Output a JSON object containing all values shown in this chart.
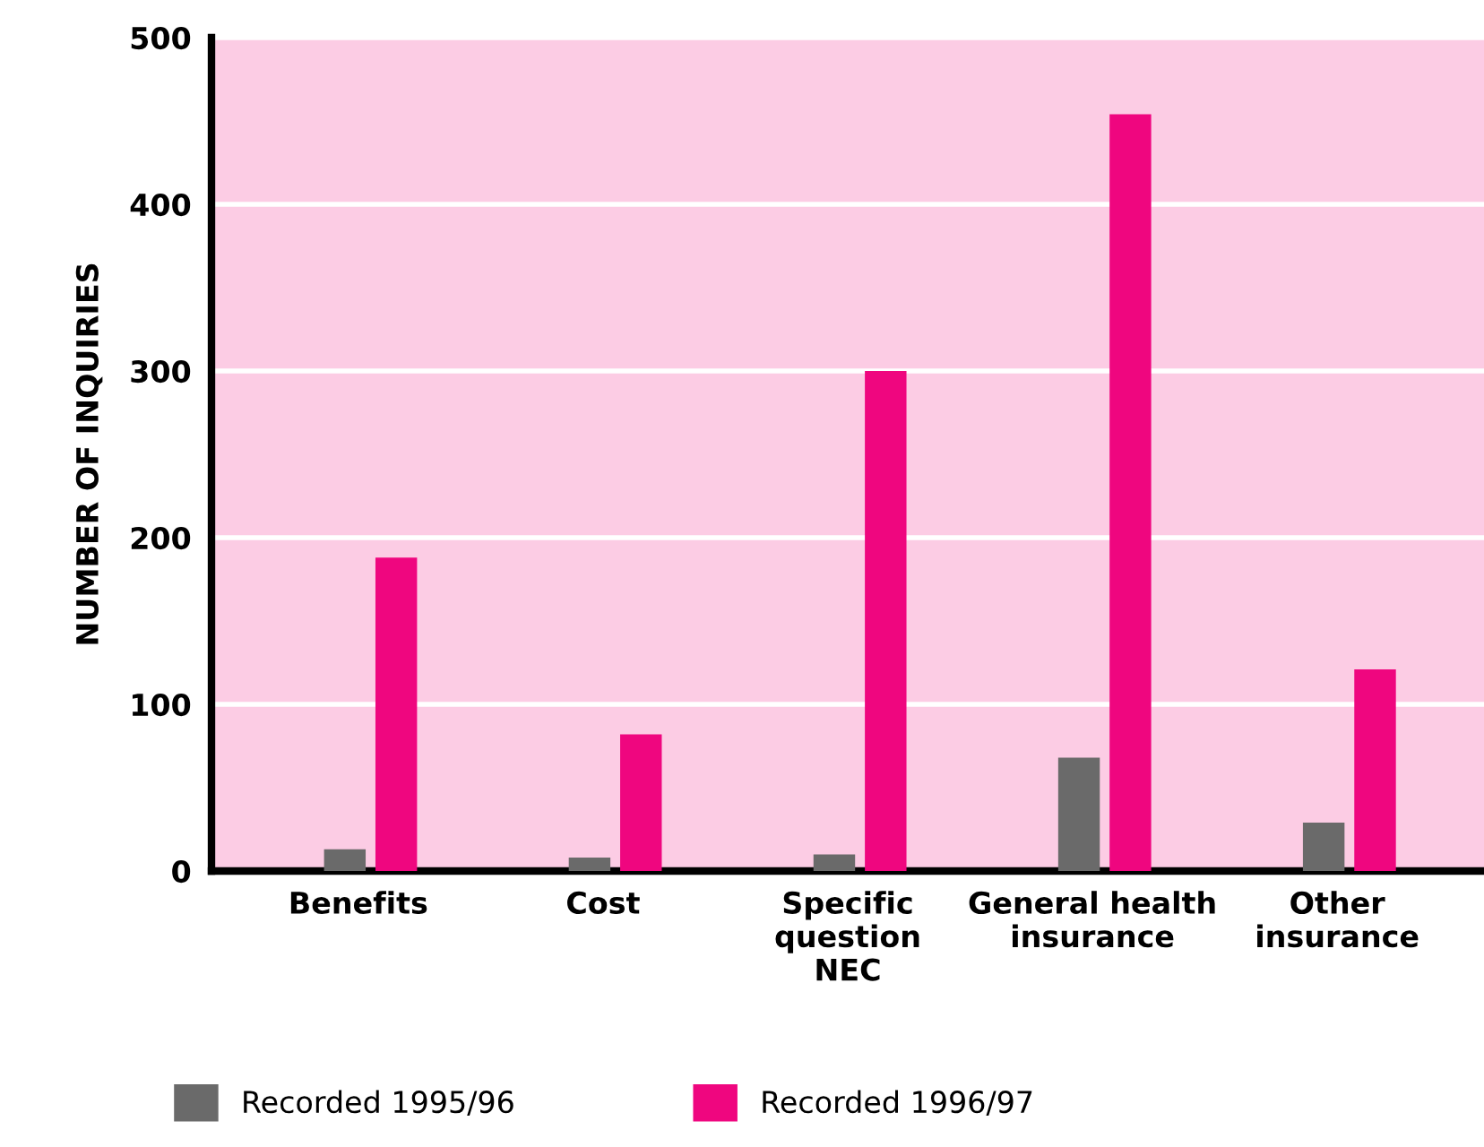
{
  "chart_data": {
    "type": "bar",
    "ylabel": "NUMBER OF INQUIRIES",
    "categories": [
      "Benefits",
      "Cost",
      "Specific\nquestion\nNEC",
      "General health\ninsurance",
      "Other\ninsurance"
    ],
    "series": [
      {
        "name": "Recorded 1995/96",
        "color": "#6a6a6a",
        "values": [
          13,
          8,
          10,
          68,
          29
        ]
      },
      {
        "name": "Recorded 1996/97",
        "color": "#ef067f",
        "values": [
          188,
          82,
          300,
          454,
          121
        ]
      }
    ],
    "ylim": [
      0,
      500
    ],
    "yticks": [
      0,
      100,
      200,
      300,
      400,
      500
    ],
    "grid": "y",
    "legend": "bottom"
  }
}
